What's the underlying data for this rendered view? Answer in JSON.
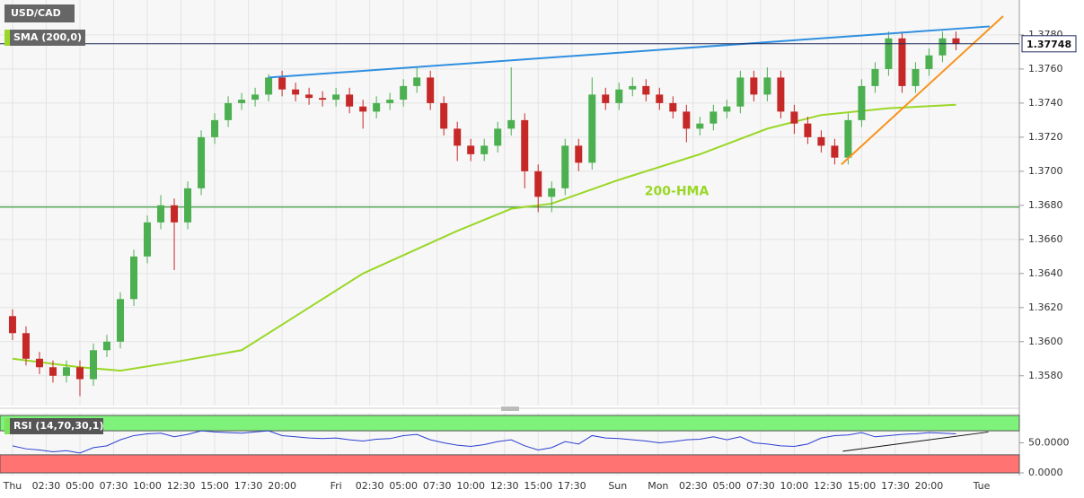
{
  "chart_data": [
    {
      "type": "candlestick",
      "title": "USD/CAD",
      "x": [
        0,
        1,
        2,
        3,
        4,
        5,
        6,
        7,
        8,
        9,
        10,
        11,
        12,
        13,
        14,
        15,
        16,
        17,
        18,
        19,
        20,
        21,
        22,
        23,
        24,
        25,
        26,
        27,
        28,
        29,
        30,
        31,
        32,
        33,
        34,
        35,
        36,
        37,
        38,
        39,
        40,
        41,
        42,
        43,
        44,
        45,
        46,
        47,
        48,
        49,
        50,
        51,
        52,
        53,
        54,
        55,
        56,
        57,
        58,
        59,
        60,
        61,
        62,
        63,
        64,
        65,
        66,
        67,
        68,
        69,
        70
      ],
      "open": [
        1.3615,
        1.3605,
        1.359,
        1.3585,
        1.358,
        1.3585,
        1.3578,
        1.3595,
        1.36,
        1.3625,
        1.365,
        1.367,
        1.368,
        1.367,
        1.369,
        1.372,
        1.373,
        1.374,
        1.3742,
        1.3745,
        1.3755,
        1.3748,
        1.3745,
        1.3743,
        1.3742,
        1.3745,
        1.3738,
        1.3735,
        1.374,
        1.3742,
        1.375,
        1.3755,
        1.374,
        1.3725,
        1.3715,
        1.371,
        1.3715,
        1.3725,
        1.373,
        1.37,
        1.3685,
        1.369,
        1.3715,
        1.3705,
        1.3745,
        1.374,
        1.3748,
        1.375,
        1.3745,
        1.374,
        1.3735,
        1.3725,
        1.3728,
        1.3735,
        1.3738,
        1.3755,
        1.3745,
        1.3755,
        1.3735,
        1.3728,
        1.372,
        1.3715,
        1.3708,
        1.373,
        1.375,
        1.376,
        1.3778,
        1.375,
        1.376,
        1.3768,
        1.3778
      ],
      "high": [
        1.3619,
        1.3609,
        1.3594,
        1.3589,
        1.3589,
        1.3589,
        1.3599,
        1.3604,
        1.3629,
        1.3654,
        1.3674,
        1.3686,
        1.3684,
        1.3694,
        1.3724,
        1.3734,
        1.3744,
        1.3746,
        1.3749,
        1.3757,
        1.3759,
        1.3752,
        1.3749,
        1.3747,
        1.3749,
        1.3749,
        1.3742,
        1.3744,
        1.3746,
        1.3754,
        1.3761,
        1.3759,
        1.3744,
        1.3729,
        1.3719,
        1.3719,
        1.3729,
        1.3761,
        1.3734,
        1.3704,
        1.3694,
        1.3719,
        1.3719,
        1.3755,
        1.3749,
        1.3752,
        1.3755,
        1.3754,
        1.3749,
        1.3744,
        1.3739,
        1.3732,
        1.3739,
        1.3742,
        1.3759,
        1.3759,
        1.3761,
        1.3759,
        1.3739,
        1.3732,
        1.3724,
        1.3719,
        1.3734,
        1.3754,
        1.3764,
        1.3782,
        1.3782,
        1.3764,
        1.3772,
        1.3782,
        1.3782
      ],
      "low": [
        1.3601,
        1.3586,
        1.3581,
        1.3576,
        1.3576,
        1.3568,
        1.3574,
        1.3591,
        1.3596,
        1.3621,
        1.3646,
        1.3666,
        1.3642,
        1.3666,
        1.3686,
        1.3716,
        1.3726,
        1.3736,
        1.3738,
        1.3741,
        1.3744,
        1.3741,
        1.3739,
        1.3738,
        1.3738,
        1.3734,
        1.3725,
        1.3731,
        1.3736,
        1.3738,
        1.3746,
        1.3736,
        1.3721,
        1.3706,
        1.3706,
        1.3706,
        1.3711,
        1.3721,
        1.369,
        1.3676,
        1.3676,
        1.3686,
        1.37,
        1.3701,
        1.3736,
        1.3736,
        1.3744,
        1.3741,
        1.3736,
        1.3731,
        1.3717,
        1.3721,
        1.3724,
        1.3731,
        1.3734,
        1.3741,
        1.3741,
        1.3731,
        1.3722,
        1.3716,
        1.3711,
        1.3704,
        1.3704,
        1.3726,
        1.3746,
        1.3756,
        1.3746,
        1.3746,
        1.3756,
        1.3764,
        1.3771
      ],
      "close": [
        1.3605,
        1.359,
        1.3585,
        1.358,
        1.3585,
        1.3578,
        1.3595,
        1.36,
        1.3625,
        1.365,
        1.367,
        1.368,
        1.367,
        1.369,
        1.372,
        1.373,
        1.374,
        1.3742,
        1.3745,
        1.3755,
        1.3748,
        1.3745,
        1.3743,
        1.3742,
        1.3745,
        1.3738,
        1.3735,
        1.374,
        1.3742,
        1.375,
        1.3755,
        1.374,
        1.3725,
        1.3715,
        1.371,
        1.3715,
        1.3725,
        1.373,
        1.37,
        1.3685,
        1.369,
        1.3715,
        1.3705,
        1.3745,
        1.374,
        1.3748,
        1.375,
        1.3745,
        1.374,
        1.3735,
        1.3725,
        1.3728,
        1.3735,
        1.3738,
        1.3755,
        1.3745,
        1.3755,
        1.3735,
        1.3728,
        1.372,
        1.3715,
        1.3708,
        1.373,
        1.375,
        1.376,
        1.3778,
        1.375,
        1.376,
        1.3768,
        1.3778,
        1.3775
      ],
      "up_color": "#4caf50",
      "down_color": "#c62828",
      "xlim": [
        -0.93,
        74.7
      ],
      "ylim": [
        1.35625,
        1.38005
      ],
      "yticks": [
        {
          "value": 1.358,
          "label": "1.3580"
        },
        {
          "value": 1.36,
          "label": "1.3600"
        },
        {
          "value": 1.362,
          "label": "1.3620"
        },
        {
          "value": 1.364,
          "label": "1.3640"
        },
        {
          "value": 1.366,
          "label": "1.3660"
        },
        {
          "value": 1.368,
          "label": "1.3680"
        },
        {
          "value": 1.37,
          "label": "1.3700"
        },
        {
          "value": 1.372,
          "label": "1.3720"
        },
        {
          "value": 1.374,
          "label": "1.3740"
        },
        {
          "value": 1.376,
          "label": "1.3760"
        },
        {
          "value": 1.378,
          "label": "1.3780"
        }
      ],
      "xticks": [
        {
          "value": 0,
          "label": "Thu"
        },
        {
          "value": 2.5,
          "label": "02:30"
        },
        {
          "value": 5,
          "label": "05:00"
        },
        {
          "value": 7.5,
          "label": "07:30"
        },
        {
          "value": 10,
          "label": "10:00"
        },
        {
          "value": 12.5,
          "label": "12:30"
        },
        {
          "value": 15,
          "label": "15:00"
        },
        {
          "value": 17.5,
          "label": "17:30"
        },
        {
          "value": 20,
          "label": "20:00"
        },
        {
          "value": 24,
          "label": "Fri"
        },
        {
          "value": 26.5,
          "label": "02:30"
        },
        {
          "value": 29,
          "label": "05:00"
        },
        {
          "value": 31.5,
          "label": "07:30"
        },
        {
          "value": 34,
          "label": "10:00"
        },
        {
          "value": 36.5,
          "label": "12:30"
        },
        {
          "value": 39,
          "label": "15:00"
        },
        {
          "value": 41.5,
          "label": "17:30"
        },
        {
          "value": 44.9,
          "label": "Sun"
        },
        {
          "value": 47.9,
          "label": "Mon"
        },
        {
          "value": 50.5,
          "label": "02:30"
        },
        {
          "value": 53,
          "label": "05:00"
        },
        {
          "value": 55.5,
          "label": "07:30"
        },
        {
          "value": 58,
          "label": "10:00"
        },
        {
          "value": 60.5,
          "label": "12:30"
        },
        {
          "value": 63,
          "label": "15:00"
        },
        {
          "value": 65.5,
          "label": "17:30"
        },
        {
          "value": 68,
          "label": "20:00"
        },
        {
          "value": 71.9,
          "label": "Tue"
        }
      ],
      "grid": true,
      "series": [
        {
          "name": "SMA (200,0)",
          "color": "#9ad727",
          "x": [
            0,
            5,
            8,
            12,
            17,
            21,
            26,
            33,
            37,
            40,
            45,
            51,
            56,
            60,
            65,
            70
          ],
          "values": [
            1.359,
            1.3585,
            1.3583,
            1.3588,
            1.3595,
            1.3615,
            1.364,
            1.3665,
            1.3678,
            1.3681,
            1.3695,
            1.371,
            1.3725,
            1.3733,
            1.3737,
            1.3739
          ]
        }
      ],
      "hlines": [
        {
          "value": 1.3679,
          "color": "#3a9b3a"
        }
      ],
      "price_line": {
        "value": 1.37748,
        "color": "#1f2a5a"
      },
      "trend_lines": [
        {
          "x": [
            19,
            72.5
          ],
          "y": [
            1.3755,
            1.3785
          ],
          "color": "#2f8fe0"
        },
        {
          "x": [
            61.5,
            73.5
          ],
          "y": [
            1.3704,
            1.3791
          ],
          "color": "#f7931e"
        }
      ],
      "annotations": [
        {
          "text": "200-HMA",
          "x": 46.9,
          "y": 1.3688,
          "color": "#9ad727"
        }
      ]
    },
    {
      "type": "line",
      "title": "RSI (14,70,30,1)",
      "x": [
        0,
        1,
        2,
        3,
        4,
        5,
        6,
        7,
        8,
        9,
        10,
        11,
        12,
        13,
        14,
        15,
        16,
        17,
        18,
        19,
        20,
        21,
        22,
        23,
        24,
        25,
        26,
        27,
        28,
        29,
        30,
        31,
        32,
        33,
        34,
        35,
        36,
        37,
        38,
        39,
        40,
        41,
        42,
        43,
        44,
        45,
        46,
        47,
        48,
        49,
        50,
        51,
        52,
        53,
        54,
        55,
        56,
        57,
        58,
        59,
        60,
        61,
        62,
        63,
        64,
        65,
        66,
        67,
        68,
        69,
        70
      ],
      "values": [
        45,
        40,
        38,
        35,
        37,
        33,
        42,
        45,
        55,
        62,
        65,
        66,
        60,
        64,
        70,
        68,
        67,
        66,
        68,
        70,
        62,
        60,
        58,
        57,
        58,
        55,
        53,
        56,
        57,
        62,
        64,
        55,
        50,
        46,
        44,
        47,
        52,
        55,
        45,
        38,
        42,
        52,
        48,
        62,
        58,
        57,
        55,
        53,
        50,
        52,
        55,
        56,
        60,
        55,
        60,
        50,
        48,
        45,
        44,
        48,
        58,
        62,
        63,
        67,
        60,
        62,
        64,
        65,
        67,
        66,
        65
      ],
      "color": "#2b3fd1",
      "ylim": [
        -4.5,
        100
      ],
      "overbought": 70,
      "oversold": 30,
      "yticks": [
        {
          "value": 50,
          "label": "50.0000"
        },
        {
          "value": 0,
          "label": "0.0000"
        }
      ],
      "trend_lines": [
        {
          "x": [
            61.6,
            72.4
          ],
          "y": [
            36,
            68
          ],
          "color": "#111111"
        }
      ]
    }
  ]
}
